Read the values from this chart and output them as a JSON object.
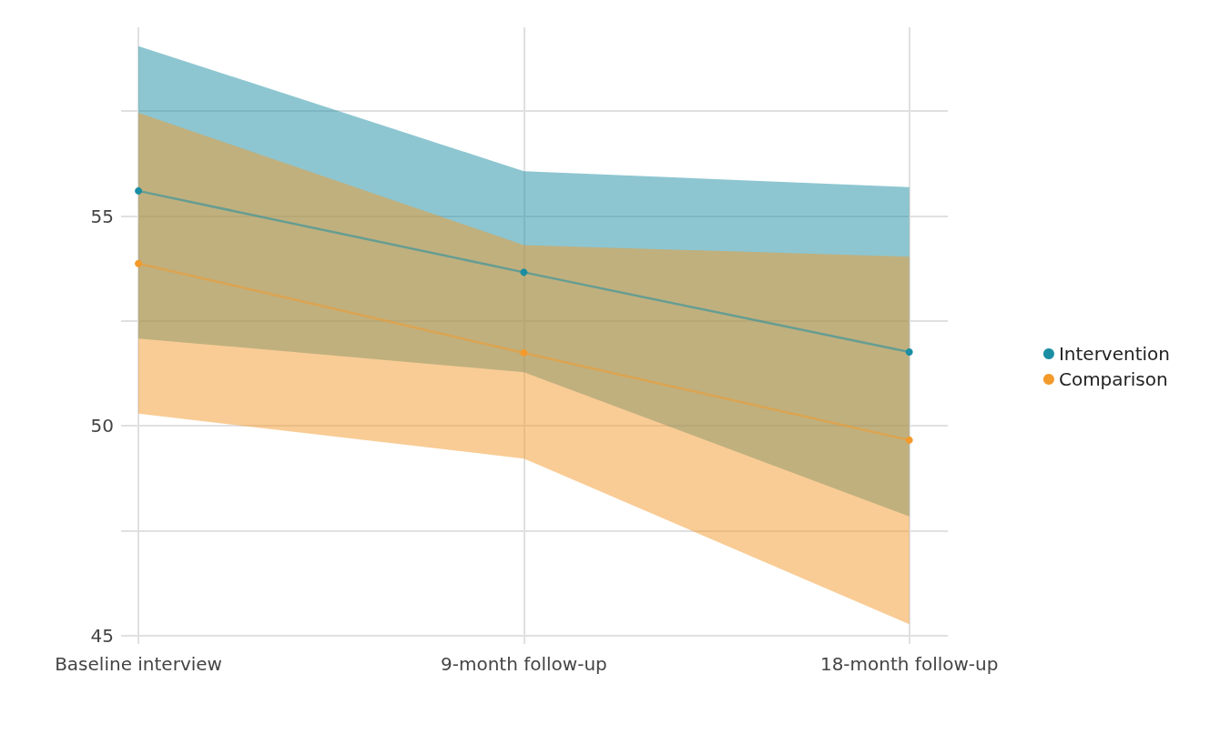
{
  "chart_data": {
    "type": "line",
    "categories": [
      "Baseline interview",
      "9-month follow-up",
      "18-month follow-up"
    ],
    "series": [
      {
        "name": "Intervention",
        "color": "#1b8ea3",
        "values": [
          55.6,
          53.66,
          51.76
        ],
        "lower": [
          52.08,
          51.28,
          47.84
        ],
        "upper": [
          59.05,
          56.07,
          55.69
        ]
      },
      {
        "name": "Comparison",
        "color": "#f39a2b",
        "values": [
          53.87,
          51.74,
          49.66
        ],
        "lower": [
          50.29,
          49.22,
          45.27
        ],
        "upper": [
          57.46,
          54.31,
          54.03
        ]
      }
    ],
    "ylim": [
      44.8,
      59.5
    ],
    "yticks": [
      45,
      {
        "value": 47.5,
        "label": null
      },
      50,
      {
        "value": 52.5,
        "label": null
      },
      55,
      {
        "value": 57.5,
        "label": null
      }
    ],
    "grid": true,
    "legend": "right",
    "marker": "circle",
    "line_style": "solid"
  }
}
